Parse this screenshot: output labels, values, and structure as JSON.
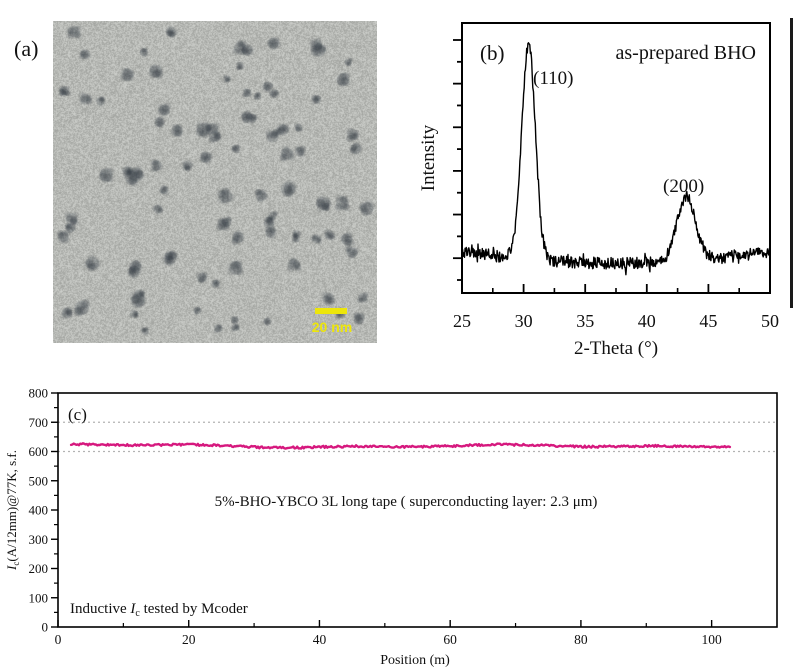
{
  "panels": {
    "a": {
      "label": "(a)",
      "kind": "TEM micrograph of as-prepared BHO nanoparticles",
      "scale_bar_text": "20 nm",
      "scale_bar_color": "#ede60a",
      "background_gray": 183,
      "particle_count": 95,
      "particle_color": "#46505a"
    },
    "b": {
      "label": "(b)",
      "annotation": "as-prepared BHO"
    },
    "c": {
      "label": "(c)",
      "annotation": "5%-BHO-YBCO 3L long tape ( superconducting layer: 2.3 μm)",
      "note": {
        "lead": "Inductive ",
        "sym": "I",
        "sub": "c",
        "tail": " tested by Mcoder"
      },
      "ylabel": {
        "sym": "I",
        "sub": "c",
        "tail": "(A/12mm)@77K, s.f."
      }
    }
  },
  "chart_data": [
    {
      "id": "xrd-pattern",
      "panel": "b",
      "type": "line",
      "title": "as-prepared BHO",
      "xlabel": "2-Theta (°)",
      "ylabel": "Intensity",
      "xlim": [
        25,
        50
      ],
      "x_major_ticks": [
        25,
        30,
        35,
        40,
        45,
        50
      ],
      "x_minor_step": 2.5,
      "y_axis_note": "unlabeled intensity axis, tick marks only",
      "y_tick_count": 12,
      "line_color": "#000000",
      "baseline_rel_level": 0.11,
      "noise_rel_amplitude": 0.022,
      "peaks": [
        {
          "label": "(110)",
          "center_2theta": 30.4,
          "sigma_deg": 0.55,
          "rel_height": 0.8
        },
        {
          "label": "(200)",
          "center_2theta": 43.2,
          "sigma_deg": 0.75,
          "rel_height": 0.24
        }
      ],
      "grid": false
    },
    {
      "id": "ic-position-scan",
      "panel": "c",
      "type": "scatter-line",
      "xlabel": "Position (m)",
      "ylabel": "Ic(A/12mm)@77K, s.f.",
      "xlim": [
        0,
        110
      ],
      "ylim": [
        0,
        800
      ],
      "x_major_ticks": [
        0,
        20,
        40,
        60,
        80,
        100
      ],
      "x_minor_step": 10,
      "y_major_ticks": [
        0,
        100,
        200,
        300,
        400,
        500,
        600,
        700,
        800
      ],
      "y_minor_step": 50,
      "reference_lines_y": [
        600,
        700
      ],
      "reference_line_style": "dotted",
      "reference_line_color": "#b3b3b3",
      "line_color": "#d6187e",
      "series": [
        {
          "name": "Inductive Ic scan",
          "x_start_m": 2,
          "x_end_m": 103,
          "mean_Ic_A": 619,
          "band_A": [
            605,
            632
          ]
        }
      ],
      "legend": "none"
    }
  ]
}
